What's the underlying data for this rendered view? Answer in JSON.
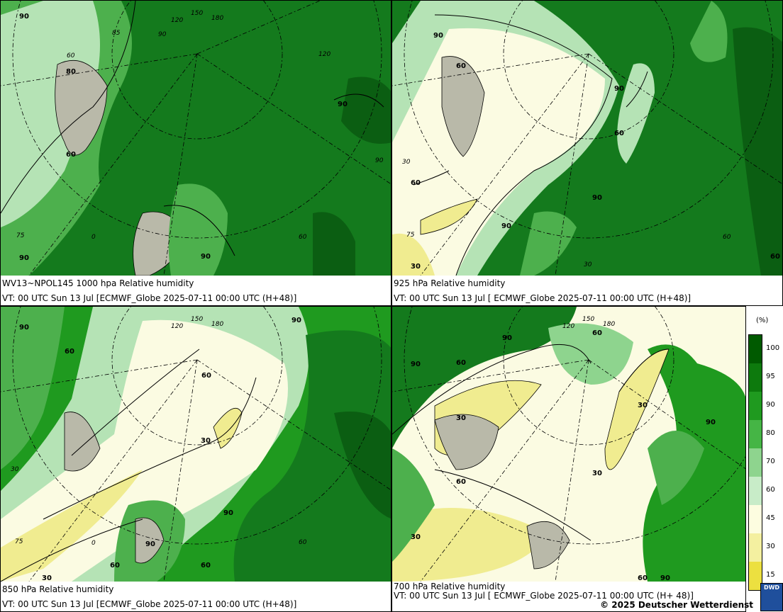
{
  "panels": [
    {
      "title": "WV13~NPOL145 1000 hpa Relative humidity",
      "vt": "VT: 00 UTC Sun  13 Jul [ECMWF_Globe 2025-07-11 00:00 UTC  (H+48)]",
      "contour_labels": [
        "90",
        "80",
        "60",
        "90",
        "90",
        "90",
        "75",
        "0",
        "60",
        "90"
      ]
    },
    {
      "title": "925 hPa Relative humidity",
      "vt": "VT: 00 UTC Sun  13 Jul [ ECMWF_Globe 2025-07-11 00:00 UTC  (H+48)]",
      "contour_labels": [
        "90",
        "60",
        "90",
        "60",
        "90",
        "90",
        "60",
        "60",
        "30",
        "30",
        "75",
        "60",
        "30"
      ]
    },
    {
      "title": "850 hPa  Relative humidity",
      "vt": "VT: 00 UTC Sun  13 Jul [ECMWF_Globe 2025-07-11 00:00 UTC (H+48)]",
      "contour_labels": [
        "90",
        "90",
        "60",
        "60",
        "30",
        "90",
        "90",
        "60",
        "60",
        "30",
        "60",
        "30",
        "75",
        "0"
      ]
    },
    {
      "title": "700 hPa Relative humidity",
      "vt": "VT: 00 UTC Sun  13 Jul [ ECMWF_Globe 2025-07-11 00:00 UTC  (H+ 48)]",
      "contour_labels": [
        "90",
        "60",
        "90",
        "60",
        "30",
        "30",
        "30",
        "90",
        "60",
        "30",
        "60",
        "90"
      ]
    }
  ],
  "longitude_labels": [
    "120",
    "150",
    "180",
    "90",
    "85",
    "60",
    "30",
    "0",
    "75",
    "120",
    "90",
    "60"
  ],
  "legend": {
    "unit": "(%)",
    "levels": [
      "100",
      "95",
      "90",
      "80",
      "70",
      "60",
      "45",
      "30",
      "15"
    ],
    "colors": [
      "#005a00",
      "#0d7a0d",
      "#1f9a1f",
      "#45b545",
      "#8ed48e",
      "#c8ecc8",
      "#fdfde0",
      "#f4f0a0",
      "#ece040"
    ]
  },
  "colors": {
    "dark_green": "#147a1d",
    "mid_green": "#4db04d",
    "light_green": "#b5e3b5",
    "pale": "#fbfbe2",
    "yellow": "#f0ec90",
    "land": "#b9b9a9"
  },
  "copyright": "© 2025 Deutscher Wetterdienst",
  "logo_text": "DWD"
}
